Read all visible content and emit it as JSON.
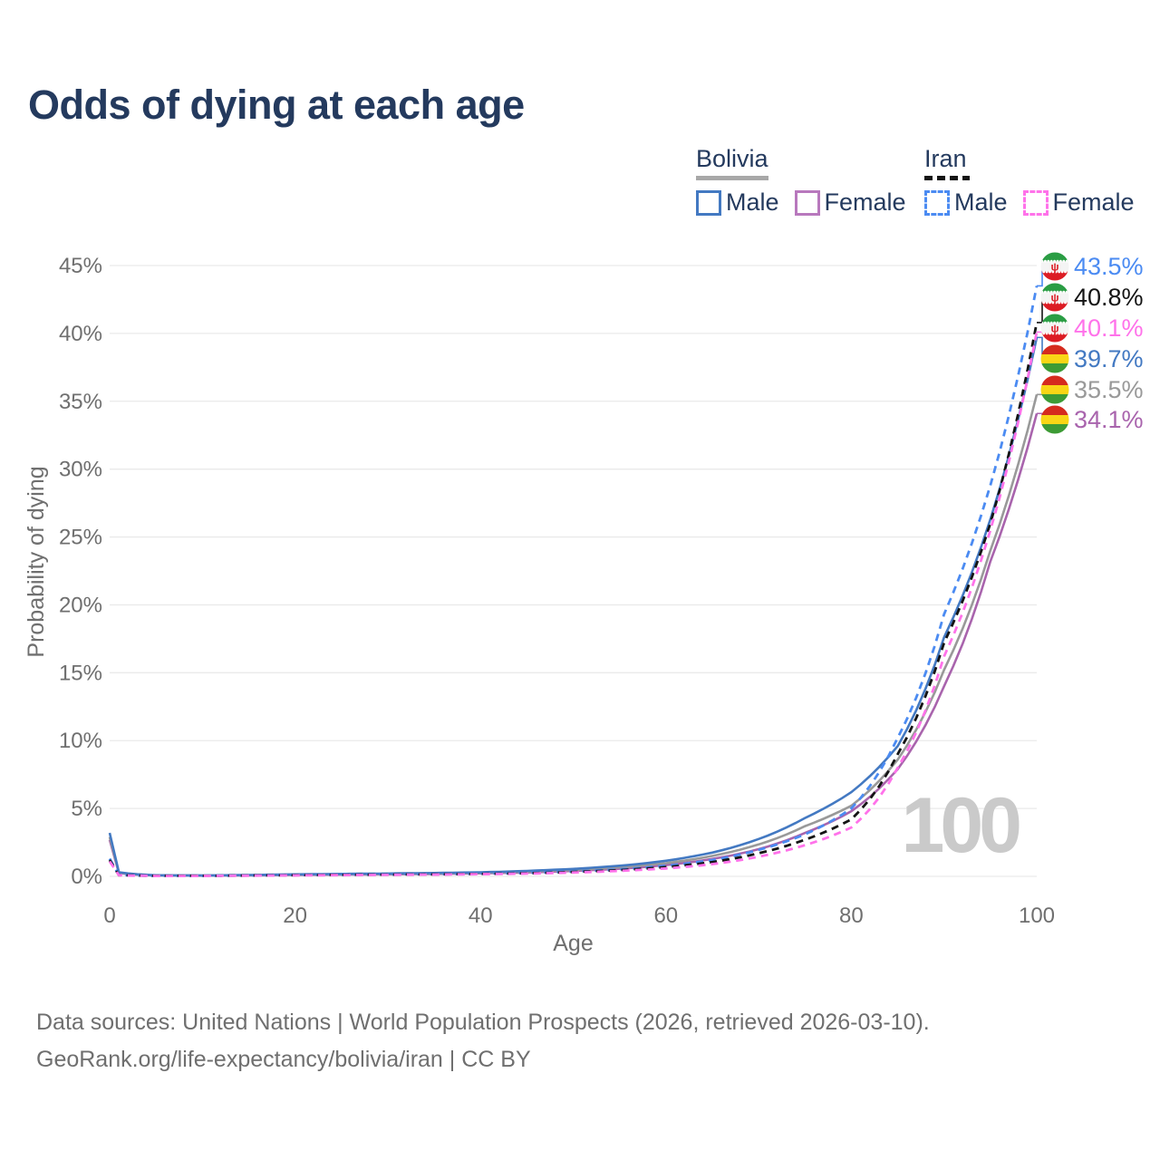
{
  "title": "Odds of dying at each age",
  "watermark_age": "100",
  "legend": {
    "groups": [
      {
        "country": "Bolivia",
        "line_style": "solid",
        "underline_color": "#a8a8a8",
        "entries": [
          {
            "label": "Male",
            "color": "#4379c2"
          },
          {
            "label": "Female",
            "color": "#b878bd"
          }
        ]
      },
      {
        "country": "Iran",
        "line_style": "dashed",
        "underline_color": "#141414",
        "entries": [
          {
            "label": "Male",
            "color": "#4b8bf2"
          },
          {
            "label": "Female",
            "color": "#ff72ea"
          }
        ]
      }
    ]
  },
  "footer": {
    "line1": "Data sources: United Nations | World Population Prospects (2026, retrieved 2026-03-10).",
    "line2": "GeoRank.org/life-expectancy/bolivia/iran | CC BY"
  },
  "chart_data": {
    "type": "line",
    "title": "Odds of dying at each age",
    "xlabel": "Age",
    "ylabel": "Probability of dying",
    "xlim": [
      0,
      100
    ],
    "ylim": [
      0,
      45
    ],
    "grid": "horizontal",
    "legend_position": "top-right",
    "x_ticks": [
      {
        "value": 0,
        "label": "0"
      },
      {
        "value": 20,
        "label": "20"
      },
      {
        "value": 40,
        "label": "40"
      },
      {
        "value": 60,
        "label": "60"
      },
      {
        "value": 80,
        "label": "80"
      },
      {
        "value": 100,
        "label": "100"
      }
    ],
    "y_ticks": [
      {
        "value": 0,
        "label": "0%"
      },
      {
        "value": 5,
        "label": "5%"
      },
      {
        "value": 10,
        "label": "10%"
      },
      {
        "value": 15,
        "label": "15%"
      },
      {
        "value": 20,
        "label": "20%"
      },
      {
        "value": 25,
        "label": "25%"
      },
      {
        "value": 30,
        "label": "30%"
      },
      {
        "value": 35,
        "label": "35%"
      },
      {
        "value": 40,
        "label": "40%"
      },
      {
        "value": 45,
        "label": "45%"
      }
    ],
    "x": [
      0,
      1,
      5,
      10,
      15,
      20,
      25,
      30,
      35,
      40,
      45,
      50,
      55,
      60,
      65,
      70,
      75,
      80,
      85,
      90,
      95,
      100
    ],
    "series": [
      {
        "id": "iran-male",
        "name": "Iran — Male",
        "country": "Iran",
        "color": "#4b8bf2",
        "dash": true,
        "flag": "iran",
        "end_label": "43.5%",
        "values": [
          1.3,
          0.1,
          0.04,
          0.04,
          0.07,
          0.11,
          0.13,
          0.15,
          0.17,
          0.2,
          0.26,
          0.36,
          0.52,
          0.78,
          1.2,
          1.95,
          3.1,
          5.0,
          10.2,
          19.3,
          28.8,
          43.5
        ]
      },
      {
        "id": "iran-both",
        "name": "Iran — Both sexes",
        "country": "Iran",
        "color": "#141414",
        "dash": true,
        "flag": "iran",
        "end_label": "40.8%",
        "values": [
          1.2,
          0.09,
          0.04,
          0.04,
          0.06,
          0.09,
          0.11,
          0.13,
          0.15,
          0.18,
          0.23,
          0.32,
          0.46,
          0.68,
          1.05,
          1.7,
          2.7,
          4.2,
          9.0,
          17.2,
          26.0,
          40.8
        ]
      },
      {
        "id": "iran-female",
        "name": "Iran — Female",
        "country": "Iran",
        "color": "#ff72ea",
        "dash": true,
        "flag": "iran",
        "end_label": "40.1%",
        "values": [
          1.1,
          0.08,
          0.03,
          0.03,
          0.05,
          0.07,
          0.09,
          0.11,
          0.13,
          0.16,
          0.2,
          0.28,
          0.4,
          0.58,
          0.9,
          1.45,
          2.3,
          3.6,
          8.0,
          16.2,
          25.5,
          40.1
        ]
      },
      {
        "id": "bolivia-male",
        "name": "Bolivia — Male",
        "country": "Bolivia",
        "color": "#4379c2",
        "dash": false,
        "flag": "bolivia",
        "end_label": "39.7%",
        "values": [
          3.2,
          0.3,
          0.08,
          0.07,
          0.1,
          0.15,
          0.18,
          0.21,
          0.25,
          0.3,
          0.4,
          0.55,
          0.78,
          1.15,
          1.75,
          2.75,
          4.3,
          6.2,
          9.6,
          17.6,
          26.3,
          39.7
        ]
      },
      {
        "id": "bolivia-both",
        "name": "Bolivia — Both sexes",
        "country": "Bolivia",
        "color": "#999999",
        "dash": false,
        "flag": "bolivia",
        "end_label": "35.5%",
        "values": [
          2.9,
          0.27,
          0.07,
          0.06,
          0.09,
          0.13,
          0.16,
          0.18,
          0.22,
          0.26,
          0.35,
          0.47,
          0.66,
          0.97,
          1.5,
          2.35,
          3.7,
          5.2,
          8.6,
          15.2,
          24.0,
          35.5
        ]
      },
      {
        "id": "bolivia-female",
        "name": "Bolivia — Female",
        "country": "Bolivia",
        "color": "#a964ad",
        "dash": false,
        "flag": "bolivia",
        "end_label": "34.1%",
        "values": [
          2.7,
          0.24,
          0.06,
          0.05,
          0.07,
          0.1,
          0.13,
          0.15,
          0.18,
          0.22,
          0.29,
          0.4,
          0.56,
          0.83,
          1.28,
          2.0,
          3.2,
          4.8,
          7.9,
          14.0,
          23.2,
          34.1
        ]
      }
    ],
    "flag_colors": {
      "iran": {
        "top": "#2a9d44",
        "middle": "#f4f4f4",
        "bottom": "#dc1c24",
        "emblem": "#dc1c24"
      },
      "bolivia": {
        "top": "#d52b1e",
        "middle": "#f9d616",
        "bottom": "#3d9b35"
      }
    }
  }
}
